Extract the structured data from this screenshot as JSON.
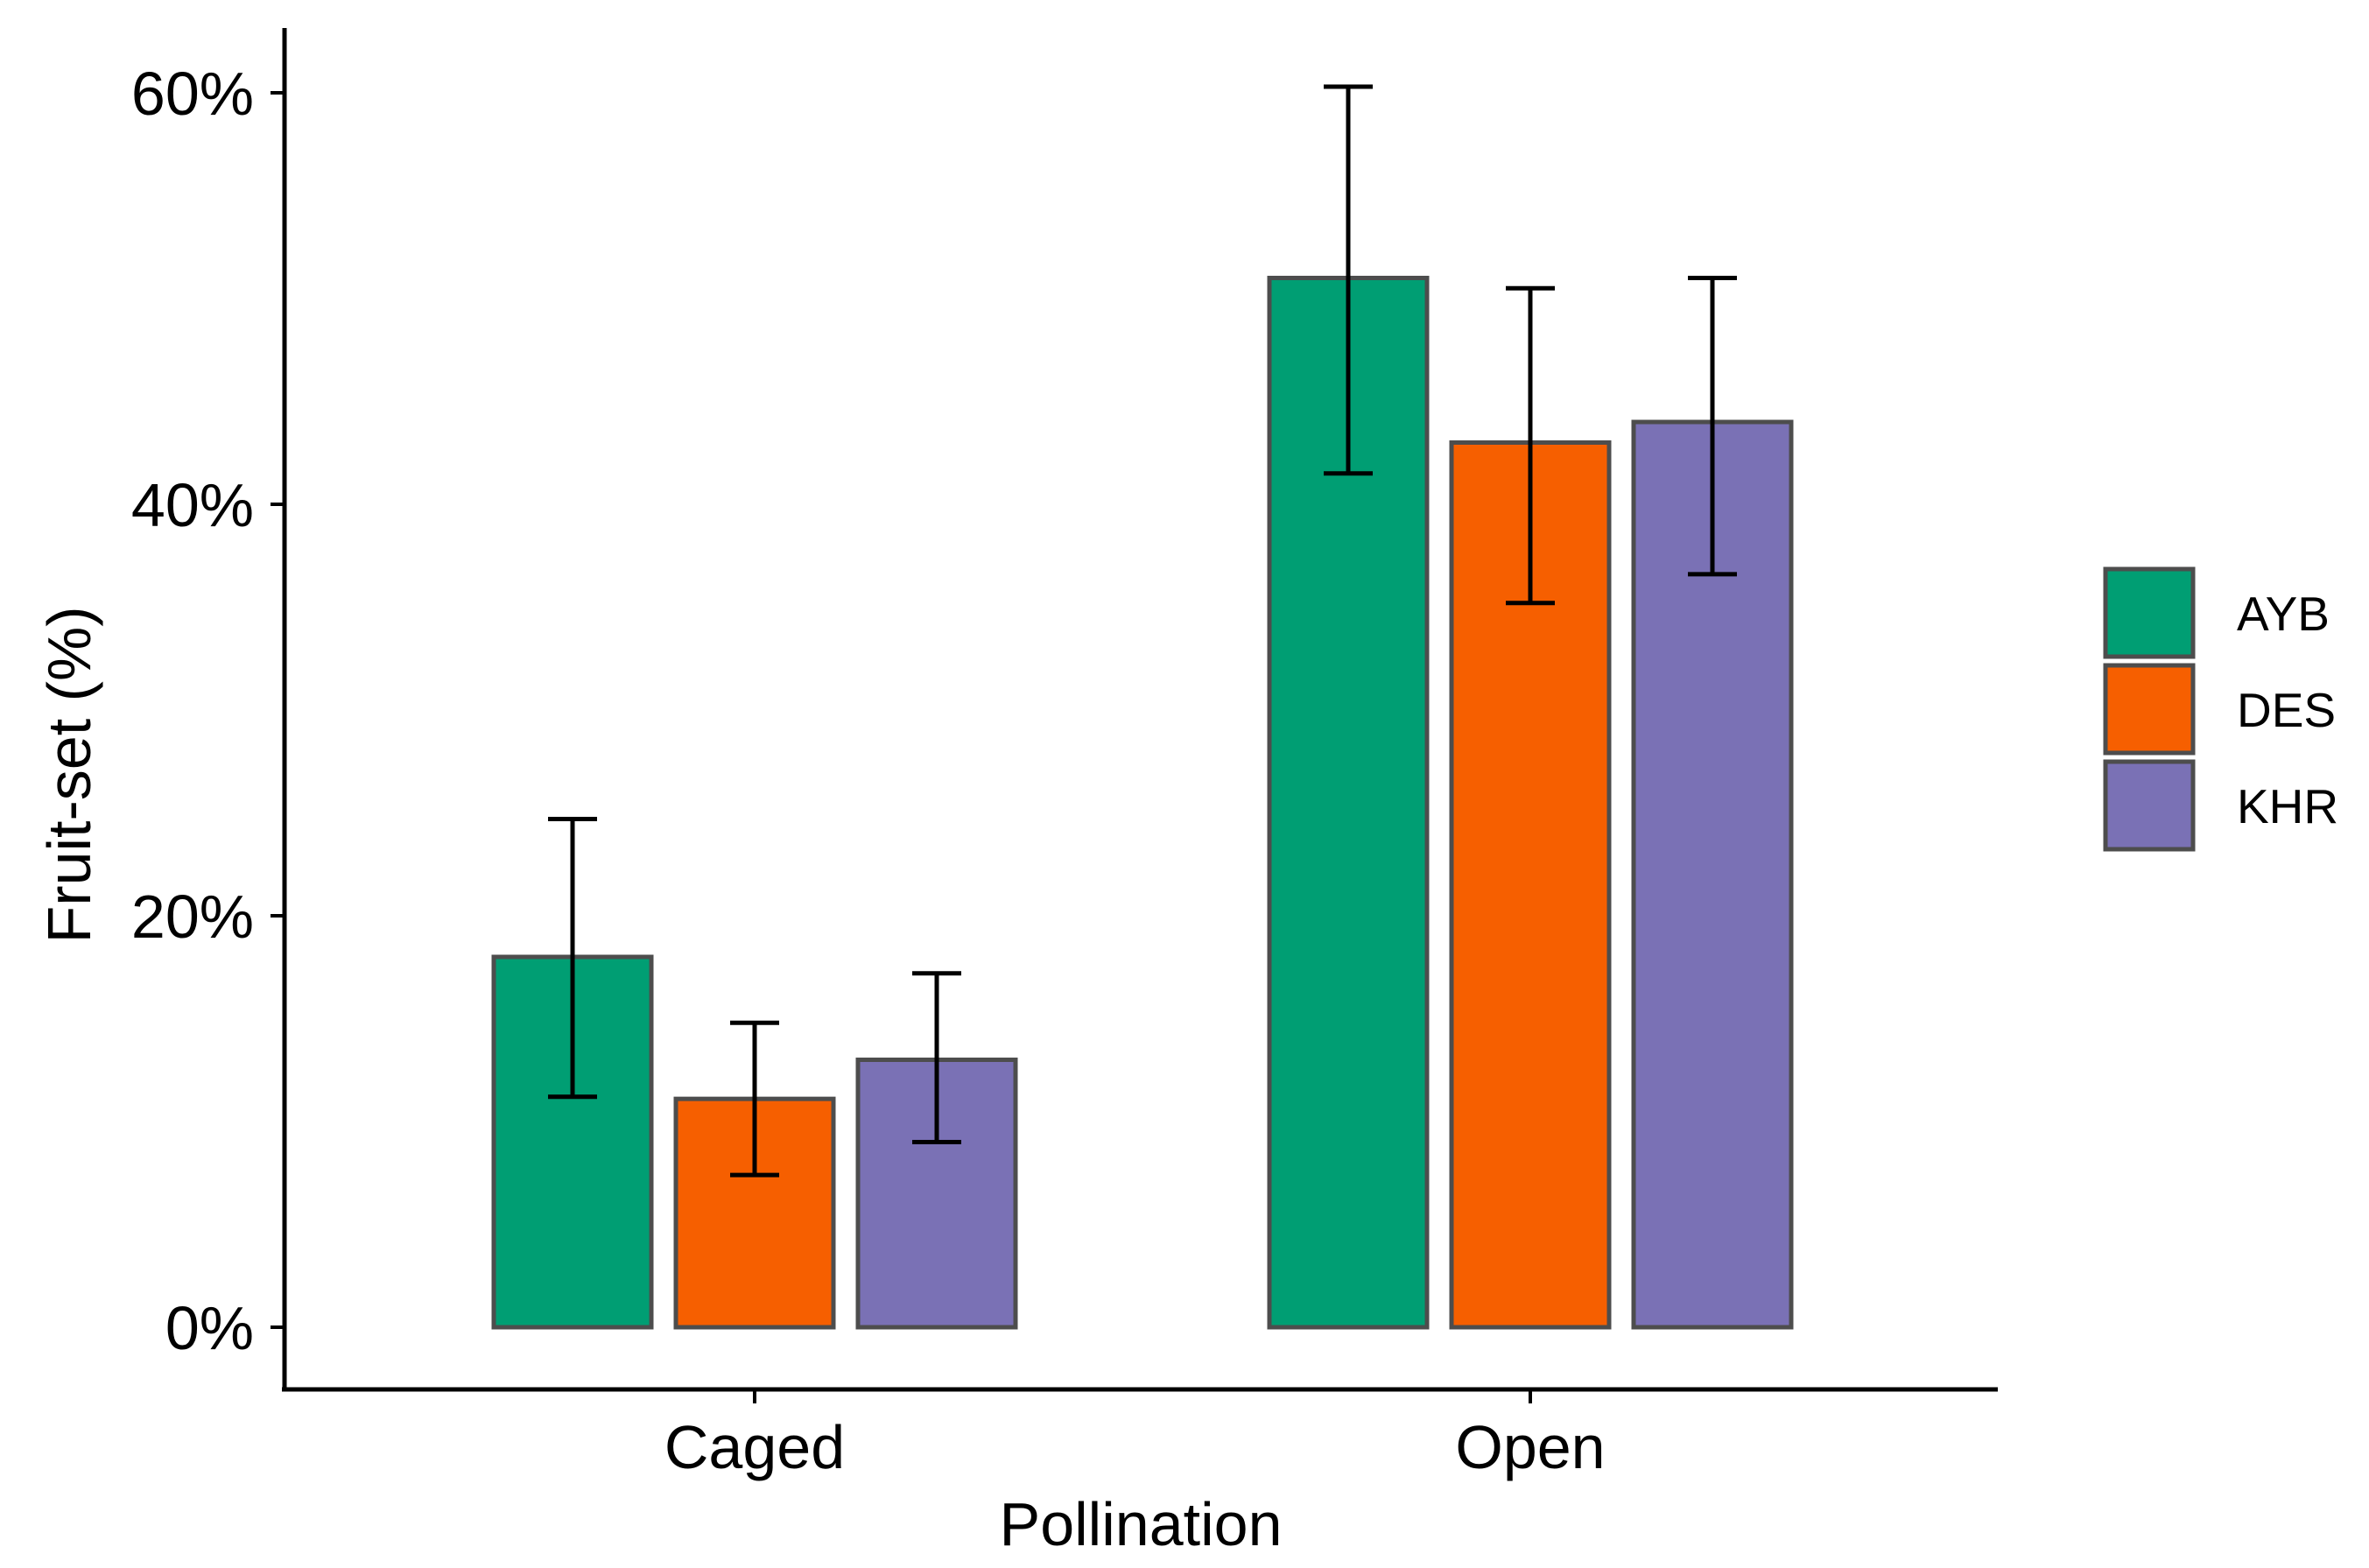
{
  "chart_data": {
    "type": "bar",
    "xlabel": "Pollination",
    "ylabel": "Fruit-set (%)",
    "categories": [
      "Caged",
      "Open"
    ],
    "ylim": [
      0,
      0.66
    ],
    "yticks": [
      0,
      0.2,
      0.4,
      0.6
    ],
    "ytick_labels": [
      "0%",
      "20%",
      "40%",
      "60%"
    ],
    "grid": false,
    "legend_position": "right",
    "series": [
      {
        "name": "AYB",
        "color": "#009E73",
        "values": [
          0.18,
          0.51
        ],
        "error_low": [
          0.112,
          0.415
        ],
        "error_high": [
          0.247,
          0.603
        ]
      },
      {
        "name": "DES",
        "color": "#F65F00",
        "values": [
          0.111,
          0.43
        ],
        "error_low": [
          0.074,
          0.352
        ],
        "error_high": [
          0.148,
          0.505
        ]
      },
      {
        "name": "KHR",
        "color": "#7A71B5",
        "values": [
          0.13,
          0.44
        ],
        "error_low": [
          0.09,
          0.366
        ],
        "error_high": [
          0.172,
          0.51
        ]
      }
    ]
  }
}
